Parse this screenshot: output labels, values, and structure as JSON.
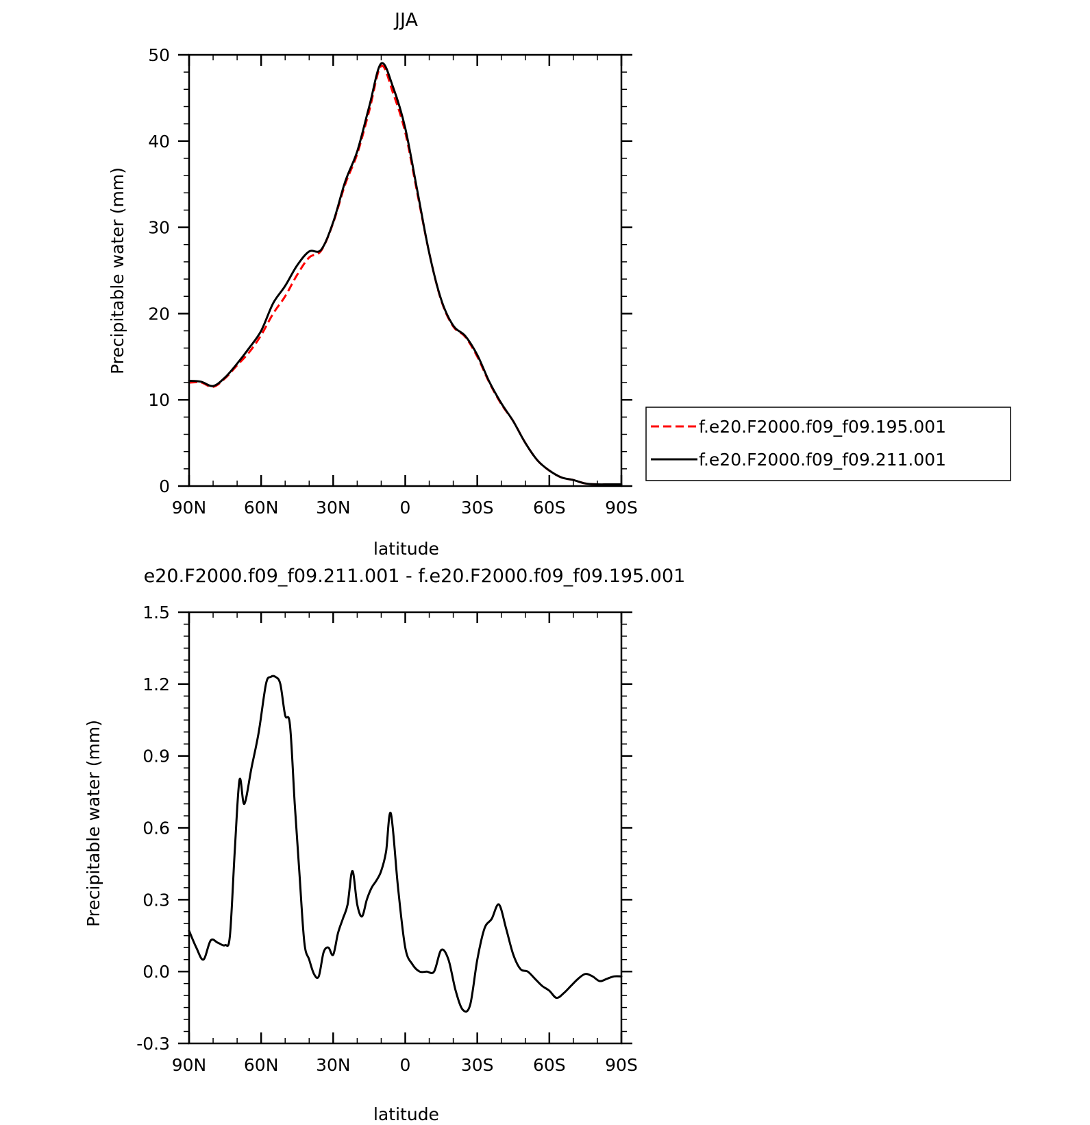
{
  "chart_data": [
    {
      "type": "line",
      "title": "JJA",
      "xlabel": "latitude",
      "ylabel": "Precipitable water (mm)",
      "xlim": [
        90,
        -90
      ],
      "ylim": [
        0,
        50
      ],
      "x_ticks": [
        90,
        60,
        30,
        0,
        -30,
        -60,
        -90
      ],
      "x_tick_labels": [
        "90N",
        "60N",
        "30N",
        "0",
        "30S",
        "60S",
        "90S"
      ],
      "y_ticks": [
        0,
        10,
        20,
        30,
        40,
        50
      ],
      "y_tick_labels": [
        "0",
        "10",
        "20",
        "30",
        "40",
        "50"
      ],
      "grid": false,
      "legend_position": "right",
      "series": [
        {
          "name": "f.e20.F2000.f09_f09.195.001",
          "color": "#ff0000",
          "style": "dashed",
          "x": [
            90,
            85,
            80,
            75,
            70,
            65,
            60,
            55,
            50,
            45,
            40,
            35,
            30,
            25,
            20,
            15,
            10,
            5,
            0,
            -5,
            -10,
            -15,
            -20,
            -25,
            -30,
            -35,
            -40,
            -45,
            -50,
            -55,
            -60,
            -65,
            -70,
            -75,
            -80,
            -85,
            -90
          ],
          "y": [
            12.0,
            12.0,
            11.5,
            12.5,
            14.0,
            15.5,
            17.5,
            20.0,
            22.0,
            24.5,
            26.5,
            27.3,
            30.5,
            35.0,
            38.5,
            43.5,
            48.7,
            45.5,
            41.0,
            34.0,
            27.0,
            21.5,
            18.5,
            17.3,
            15.0,
            12.0,
            9.5,
            7.5,
            5.0,
            3.0,
            1.8,
            1.0,
            0.7,
            0.3,
            0.2,
            0.2,
            0.2
          ]
        },
        {
          "name": "f.e20.F2000.f09_f09.211.001",
          "color": "#000000",
          "style": "solid",
          "x": [
            90,
            85,
            80,
            75,
            70,
            65,
            60,
            55,
            50,
            45,
            40,
            35,
            30,
            25,
            20,
            15,
            10,
            5,
            0,
            -5,
            -10,
            -15,
            -20,
            -25,
            -30,
            -35,
            -40,
            -45,
            -50,
            -55,
            -60,
            -65,
            -70,
            -75,
            -80,
            -85,
            -90
          ],
          "y": [
            12.2,
            12.1,
            11.6,
            12.6,
            14.2,
            16.0,
            18.0,
            21.2,
            23.2,
            25.6,
            27.2,
            27.4,
            30.6,
            35.3,
            38.8,
            44.0,
            49.0,
            46.2,
            41.5,
            34.3,
            27.0,
            21.6,
            18.6,
            17.4,
            15.2,
            12.1,
            9.6,
            7.5,
            5.0,
            3.0,
            1.8,
            1.0,
            0.7,
            0.3,
            0.2,
            0.2,
            0.2
          ]
        }
      ]
    },
    {
      "type": "line",
      "title": "e20.F2000.f09_f09.211.001 - f.e20.F2000.f09_f09.195.001",
      "xlabel": "latitude",
      "ylabel": "Precipitable water (mm)",
      "xlim": [
        90,
        -90
      ],
      "ylim": [
        -0.3,
        1.5
      ],
      "x_ticks": [
        90,
        60,
        30,
        0,
        -30,
        -60,
        -90
      ],
      "x_tick_labels": [
        "90N",
        "60N",
        "30N",
        "0",
        "30S",
        "60S",
        "90S"
      ],
      "y_ticks": [
        -0.3,
        0.0,
        0.3,
        0.6,
        0.9,
        1.2,
        1.5
      ],
      "y_tick_labels": [
        "-0.3",
        "0.0",
        "0.3",
        "0.6",
        "0.9",
        "1.2",
        "1.5"
      ],
      "grid": false,
      "series": [
        {
          "color": "#000000",
          "style": "solid",
          "x": [
            90,
            87,
            84,
            81,
            78,
            75,
            73,
            71,
            69,
            67,
            64,
            61,
            58,
            56,
            54,
            52,
            50,
            48,
            46,
            44,
            42,
            40,
            38,
            36,
            34,
            32,
            30,
            28,
            26,
            24,
            22,
            20,
            18,
            16,
            14,
            12,
            10,
            8,
            6,
            3,
            0,
            -3,
            -6,
            -9,
            -12,
            -15,
            -18,
            -21,
            -24,
            -27,
            -30,
            -33,
            -36,
            -39,
            -42,
            -45,
            -48,
            -51,
            -54,
            -57,
            -60,
            -63,
            -66,
            -69,
            -72,
            -75,
            -78,
            -81,
            -84,
            -87,
            -90
          ],
          "y": [
            0.17,
            0.1,
            0.05,
            0.13,
            0.12,
            0.11,
            0.15,
            0.5,
            0.8,
            0.7,
            0.85,
            1.0,
            1.2,
            1.23,
            1.23,
            1.2,
            1.07,
            1.03,
            0.7,
            0.4,
            0.12,
            0.05,
            -0.01,
            -0.02,
            0.08,
            0.1,
            0.07,
            0.16,
            0.22,
            0.28,
            0.42,
            0.28,
            0.23,
            0.3,
            0.35,
            0.38,
            0.42,
            0.5,
            0.66,
            0.35,
            0.1,
            0.03,
            0.0,
            0.0,
            0.0,
            0.09,
            0.05,
            -0.08,
            -0.16,
            -0.14,
            0.05,
            0.18,
            0.22,
            0.28,
            0.18,
            0.07,
            0.01,
            0.0,
            -0.03,
            -0.06,
            -0.08,
            -0.11,
            -0.09,
            -0.06,
            -0.03,
            -0.01,
            -0.02,
            -0.04,
            -0.03,
            -0.02,
            -0.02
          ]
        }
      ]
    }
  ]
}
